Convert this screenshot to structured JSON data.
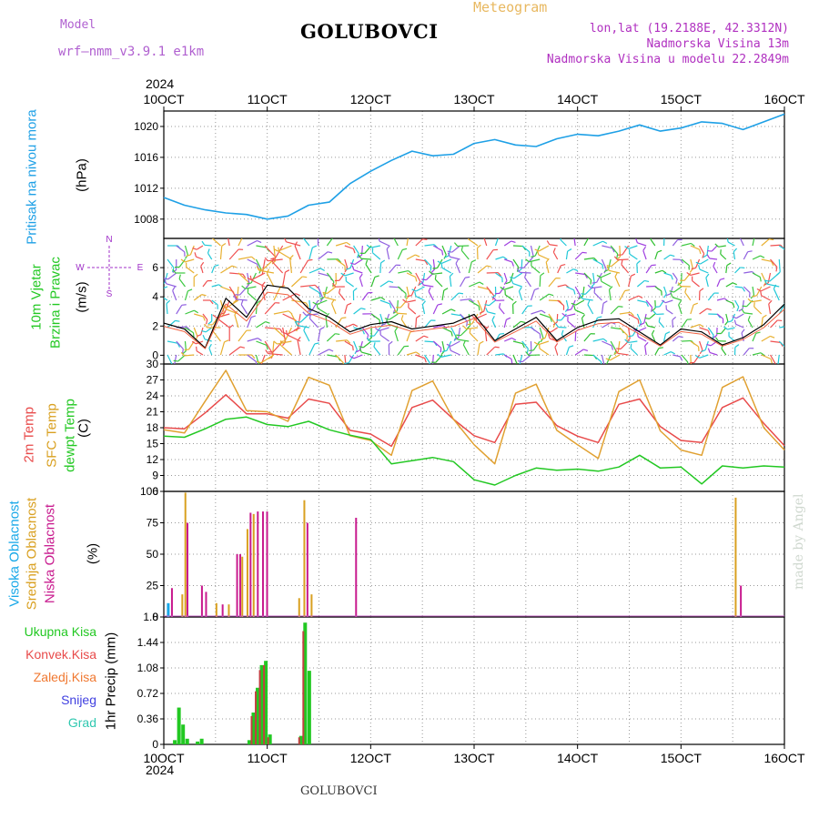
{
  "header": {
    "model_label": "Model",
    "model_name": "wrf—nmm_v3.9.1  e1km",
    "station": "GOLUBOVCI",
    "title": "Meteogram",
    "coords": "lon,lat (19.2188E, 42.3312N)",
    "elevation": "Nadmorska Visina 13m",
    "elevation_model": "Nadmorska Visina u modelu 22.2849m",
    "year": "2024",
    "footer_station": "GOLUBOVCI",
    "credit": "made by Angel"
  },
  "colors": {
    "pressure": "#1ea0e6",
    "temp2m": "#e84a4a",
    "sfc": "#e0a030",
    "dewpt": "#22c822",
    "high_cloud": "#18a8e8",
    "mid_cloud": "#d9a020",
    "low_cloud": "#c81a8e",
    "wind_label": "#22c822",
    "compass": "#a030c8"
  },
  "x_ticks": [
    "10OCT",
    "11OCT",
    "12OCT",
    "13OCT",
    "14OCT",
    "15OCT",
    "16OCT"
  ],
  "compass": {
    "n": "N",
    "w": "W",
    "e": "E",
    "s": "S"
  },
  "chart_data": [
    {
      "type": "line",
      "ylabel_main": "Pritisak na nivou mora",
      "unit": "(hPa)",
      "ylim": [
        1005.5,
        1022
      ],
      "yticks": [
        1008,
        1012,
        1016,
        1020
      ],
      "x": [
        0,
        0.2,
        0.4,
        0.6,
        0.8,
        1.0,
        1.2,
        1.4,
        1.6,
        1.8,
        2.0,
        2.2,
        2.4,
        2.6,
        2.8,
        3.0,
        3.2,
        3.4,
        3.6,
        3.8,
        4.0,
        4.2,
        4.4,
        4.6,
        4.8,
        5.0,
        5.2,
        5.4,
        5.6,
        5.8,
        6.0
      ],
      "series": [
        {
          "values": [
            1010.8,
            1009.8,
            1009.2,
            1008.8,
            1008.6,
            1008.0,
            1008.4,
            1009.8,
            1010.2,
            1012.6,
            1014.2,
            1015.6,
            1016.8,
            1016.2,
            1016.4,
            1017.8,
            1018.3,
            1017.6,
            1017.4,
            1018.4,
            1019.0,
            1018.8,
            1019.4,
            1020.2,
            1019.4,
            1019.8,
            1020.6,
            1020.4,
            1019.6,
            1020.6,
            1021.6
          ]
        }
      ]
    },
    {
      "type": "line",
      "ylabel_main": "10m Vjetar",
      "ylabel_sub": "Brzina i Pravac",
      "unit": "(m/s)",
      "ylim": [
        -0.6,
        8
      ],
      "yticks": [
        0,
        2,
        4,
        6
      ],
      "x": [
        0,
        0.2,
        0.4,
        0.6,
        0.8,
        1.0,
        1.2,
        1.4,
        1.6,
        1.8,
        2.0,
        2.2,
        2.4,
        2.6,
        2.8,
        3.0,
        3.2,
        3.4,
        3.6,
        3.8,
        4.0,
        4.2,
        4.4,
        4.6,
        4.8,
        5.0,
        5.2,
        5.4,
        5.6,
        5.8,
        6.0
      ],
      "series": [
        {
          "values": [
            2.2,
            1.8,
            0.5,
            3.9,
            2.6,
            4.8,
            4.6,
            3.2,
            2.6,
            1.6,
            2.1,
            2.3,
            1.8,
            2.0,
            2.2,
            2.8,
            1.0,
            1.8,
            2.6,
            1.0,
            1.9,
            2.4,
            2.5,
            1.6,
            0.7,
            1.8,
            1.6,
            0.7,
            1.2,
            2.1,
            3.5
          ]
        }
      ]
    },
    {
      "type": "line",
      "ylabel_lines": [
        "2m Temp",
        "SFC Temp",
        "dewpt Temp"
      ],
      "unit": "(C)",
      "ylim": [
        6,
        30
      ],
      "yticks": [
        6,
        9,
        12,
        15,
        18,
        21,
        24,
        27,
        30
      ],
      "x": [
        0,
        0.2,
        0.4,
        0.6,
        0.8,
        1.0,
        1.2,
        1.4,
        1.6,
        1.8,
        2.0,
        2.2,
        2.4,
        2.6,
        2.8,
        3.0,
        3.2,
        3.4,
        3.6,
        3.8,
        4.0,
        4.2,
        4.4,
        4.6,
        4.8,
        5.0,
        5.2,
        5.4,
        5.6,
        5.8,
        6.0
      ],
      "series": [
        {
          "name": "2m Temp",
          "values": [
            18.0,
            17.8,
            20.8,
            24.2,
            20.6,
            20.6,
            19.8,
            23.4,
            22.6,
            17.5,
            16.8,
            14.5,
            21.8,
            23.2,
            19.6,
            16.5,
            15.2,
            22.4,
            22.8,
            18.4,
            16.4,
            15.2,
            22.4,
            23.4,
            18.2,
            15.6,
            15.2,
            21.8,
            23.6,
            18.8,
            14.6
          ]
        },
        {
          "name": "SFC Temp",
          "values": [
            17.6,
            17.0,
            23.0,
            28.8,
            21.2,
            21.0,
            19.2,
            27.5,
            26.0,
            16.5,
            15.6,
            12.8,
            25.0,
            26.8,
            19.6,
            14.8,
            11.2,
            24.5,
            26.2,
            17.5,
            14.8,
            12.2,
            24.8,
            27.0,
            17.4,
            13.8,
            12.8,
            25.6,
            27.6,
            18.0,
            13.8
          ]
        },
        {
          "name": "dewpt Temp",
          "values": [
            16.4,
            16.2,
            17.8,
            19.6,
            20.0,
            18.6,
            18.2,
            19.2,
            17.6,
            16.6,
            15.8,
            11.2,
            11.8,
            12.4,
            11.6,
            8.2,
            7.2,
            9.0,
            10.4,
            10.0,
            10.2,
            9.8,
            10.6,
            12.8,
            10.4,
            10.6,
            7.4,
            10.8,
            10.4,
            10.8,
            10.6
          ]
        }
      ]
    },
    {
      "type": "bar",
      "ylabel_lines": [
        "Visoka Oblacnost",
        "Srednja Oblacnost",
        "Niska Oblacnost"
      ],
      "unit": "(%)",
      "ylim": [
        0,
        100
      ],
      "yticks": [
        0,
        25,
        50,
        75,
        100
      ],
      "series": [
        {
          "name": "Visoka Oblacnost",
          "x": [
            0.03
          ],
          "values": [
            11
          ]
        },
        {
          "name": "Srednja Oblacnost",
          "x": [
            0.17,
            0.2,
            0.5,
            0.62,
            0.75,
            0.8,
            0.86,
            1.3,
            1.35,
            1.42,
            5.52
          ],
          "values": [
            18,
            99,
            11,
            10,
            48,
            70,
            82,
            15,
            93,
            18,
            95
          ]
        },
        {
          "name": "Niska Oblacnost",
          "x": [
            0.07,
            0.22,
            0.36,
            0.4,
            0.56,
            0.7,
            0.73,
            0.83,
            0.9,
            0.95,
            0.99,
            1.38,
            1.85,
            5.57
          ],
          "values": [
            23,
            75,
            25,
            20,
            10,
            50,
            50,
            83,
            84,
            84,
            84,
            75,
            79,
            25
          ]
        }
      ]
    },
    {
      "type": "bar",
      "ylabel_lines": [
        "Ukupna Kisa",
        "Konvek.Kisa",
        "Zaledj.Kisa",
        "Snijeg",
        "Grad"
      ],
      "unit": "1hr Precip (mm)",
      "ylim": [
        0,
        1.8
      ],
      "yticks": [
        0,
        0.36,
        0.72,
        1.08,
        1.44,
        1.8
      ],
      "series": [
        {
          "name": "Ukupna Kisa",
          "x": [
            0.08,
            0.12,
            0.16,
            0.2,
            0.3,
            0.34,
            0.8,
            0.84,
            0.88,
            0.92,
            0.96,
            1.0,
            1.3,
            1.34,
            1.38,
            1.42
          ],
          "values": [
            0.06,
            0.52,
            0.28,
            0.08,
            0.04,
            0.08,
            0.06,
            0.45,
            0.8,
            1.12,
            1.18,
            0.14,
            0.12,
            1.72,
            1.04,
            0.0
          ]
        },
        {
          "name": "Konvek.Kisa",
          "x": [
            0.84,
            0.88,
            0.92,
            0.96,
            1.0,
            1.3,
            1.34
          ],
          "values": [
            0.4,
            0.75,
            1.05,
            1.12,
            0.1,
            0.1,
            1.6
          ]
        }
      ]
    }
  ]
}
